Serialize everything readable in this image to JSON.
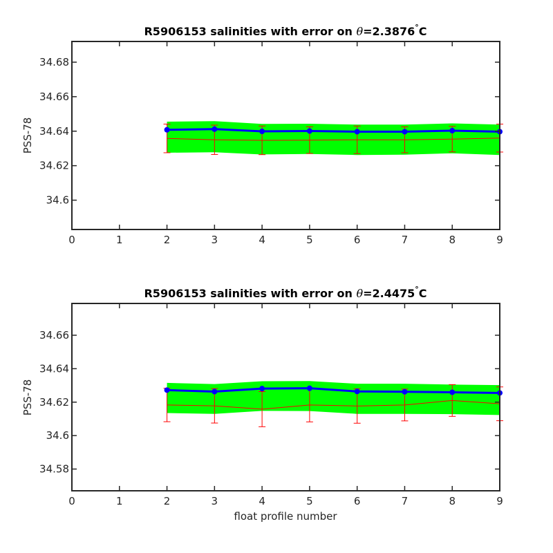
{
  "chart_data": [
    {
      "type": "line",
      "title_prefix": "R5906153 salinities with error on ",
      "title_symbol": "θ",
      "title_value": "=2.3876",
      "title_degree": "°",
      "title_unit": "C",
      "xlabel": "",
      "ylabel": "PSS-78",
      "xlim": [
        0,
        9
      ],
      "ylim": [
        34.583,
        34.692
      ],
      "x_ticks": [
        "0",
        "1",
        "2",
        "3",
        "4",
        "5",
        "6",
        "7",
        "8",
        "9"
      ],
      "y_ticks": [
        "34.6",
        "34.62",
        "34.64",
        "34.66",
        "34.68"
      ],
      "x": [
        2,
        3,
        4,
        5,
        6,
        7,
        8,
        9
      ],
      "band_upper": [
        34.6455,
        34.6458,
        34.6442,
        34.6443,
        34.6438,
        34.6438,
        34.6445,
        34.6438
      ],
      "band_lower": [
        34.6275,
        34.6278,
        34.6265,
        34.6268,
        34.6262,
        34.6264,
        34.6272,
        34.6262
      ],
      "series": [
        {
          "values": [
            34.6408,
            34.6412,
            34.6399,
            34.6401,
            34.6397,
            34.6397,
            34.6403,
            34.6397
          ],
          "color": "#0000ff",
          "marker": "circle"
        },
        {
          "values": [
            34.6358,
            34.635,
            34.6347,
            34.6348,
            34.635,
            34.635,
            34.6354,
            34.636
          ],
          "color": "#ff0000",
          "error": [
            0.0083,
            0.0085,
            0.0083,
            0.0077,
            0.008,
            0.0075,
            0.0074,
            0.0081
          ]
        }
      ],
      "colors": {
        "band": "#00ff00",
        "mean": "#0000ff",
        "error": "#ff0000"
      }
    },
    {
      "type": "line",
      "title_prefix": "R5906153 salinities with error on ",
      "title_symbol": "θ",
      "title_value": "=2.4475",
      "title_degree": "°",
      "title_unit": "C",
      "xlabel": "float profile number",
      "ylabel": "PSS-78",
      "xlim": [
        0,
        9
      ],
      "ylim": [
        34.567,
        34.679
      ],
      "x_ticks": [
        "0",
        "1",
        "2",
        "3",
        "4",
        "5",
        "6",
        "7",
        "8",
        "9"
      ],
      "y_ticks": [
        "34.58",
        "34.6",
        "34.62",
        "34.64",
        "34.66"
      ],
      "x": [
        2,
        3,
        4,
        5,
        6,
        7,
        8,
        9
      ],
      "band_upper": [
        34.6315,
        34.6308,
        34.6325,
        34.6326,
        34.631,
        34.631,
        34.6305,
        34.6302
      ],
      "band_lower": [
        34.6135,
        34.613,
        34.6148,
        34.6147,
        34.613,
        34.613,
        34.6128,
        34.6123
      ],
      "series": [
        {
          "values": [
            34.6272,
            34.6263,
            34.6281,
            34.6283,
            34.6264,
            34.6262,
            34.6259,
            34.6255
          ],
          "color": "#0000ff",
          "marker": "circle"
        },
        {
          "values": [
            34.6183,
            34.6178,
            34.6158,
            34.6183,
            34.6177,
            34.6183,
            34.621,
            34.619
          ],
          "color": "#ff0000",
          "error": [
            0.01,
            0.0103,
            0.0105,
            0.0101,
            0.0103,
            0.0095,
            0.0095,
            0.0101
          ]
        }
      ],
      "colors": {
        "band": "#00ff00",
        "mean": "#0000ff",
        "error": "#ff0000"
      }
    }
  ]
}
